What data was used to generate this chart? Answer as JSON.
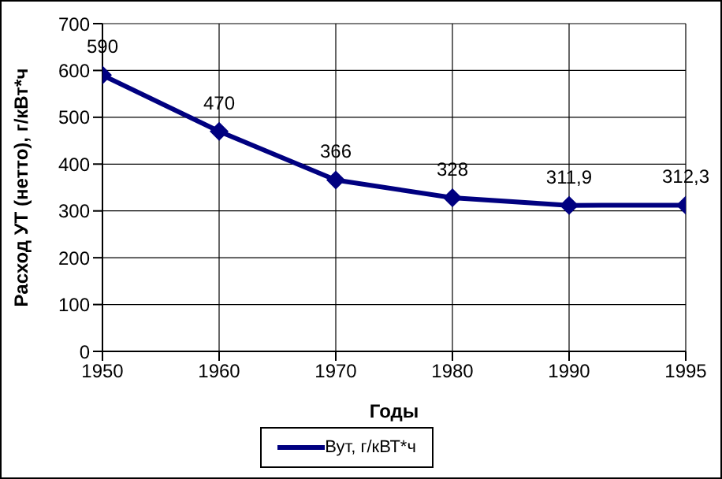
{
  "chart_data": {
    "type": "line",
    "xlabel": "Годы",
    "ylabel": "Расход УТ (нетто), г/кВт*ч",
    "categories": [
      "1950",
      "1960",
      "1970",
      "1980",
      "1990",
      "1995"
    ],
    "series": [
      {
        "name": "Вут, г/кВТ*ч",
        "color": "#000080",
        "values": [
          590,
          470,
          366,
          328,
          311.9,
          312.3
        ],
        "value_labels": [
          "590",
          "470",
          "366",
          "328",
          "311,9",
          "312,3"
        ]
      }
    ],
    "ylim": [
      0,
      700
    ],
    "yticks": [
      0,
      100,
      200,
      300,
      400,
      500,
      600,
      700
    ],
    "grid": true,
    "legend": "bottom",
    "marker": "diamond",
    "line_style": "solid"
  }
}
